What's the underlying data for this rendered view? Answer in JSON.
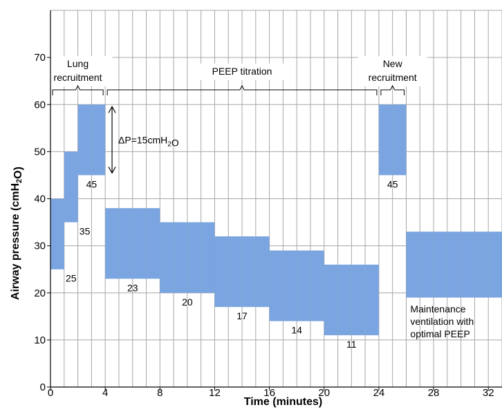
{
  "chart_data": {
    "type": "bar",
    "title": "",
    "xlabel": "Time (minutes)",
    "ylabel": "Airway pressure  (cmH₂O)",
    "xlim": [
      0,
      33
    ],
    "ylim": [
      0,
      80
    ],
    "xticks": [
      0,
      4,
      8,
      12,
      16,
      20,
      24,
      28,
      32
    ],
    "yticks": [
      0,
      10,
      20,
      30,
      40,
      50,
      60,
      70
    ],
    "grid": true,
    "bar_color": "#7aa5e0",
    "bars": [
      {
        "x0": 0,
        "x1": 1,
        "low": 25,
        "high": 40,
        "label": "25"
      },
      {
        "x0": 1,
        "x1": 2,
        "low": 35,
        "high": 50,
        "label": "35"
      },
      {
        "x0": 2,
        "x1": 4,
        "low": 45,
        "high": 60,
        "label": "45"
      },
      {
        "x0": 4,
        "x1": 8,
        "low": 23,
        "high": 38,
        "label": "23"
      },
      {
        "x0": 8,
        "x1": 12,
        "low": 20,
        "high": 35,
        "label": "20"
      },
      {
        "x0": 12,
        "x1": 16,
        "low": 17,
        "high": 32,
        "label": "17"
      },
      {
        "x0": 16,
        "x1": 20,
        "low": 14,
        "high": 29,
        "label": "14"
      },
      {
        "x0": 20,
        "x1": 24,
        "low": 11,
        "high": 26,
        "label": "11"
      },
      {
        "x0": 24,
        "x1": 26,
        "low": 45,
        "high": 60,
        "label": "45"
      },
      {
        "x0": 26,
        "x1": 33,
        "low": 19,
        "high": 33,
        "label": ""
      }
    ],
    "phases": [
      {
        "lines": [
          "Lung",
          "recruitment"
        ],
        "x0": 0,
        "x1": 4
      },
      {
        "lines": [
          "PEEP titration"
        ],
        "x0": 4,
        "x1": 24
      },
      {
        "lines": [
          "New",
          "recruitment"
        ],
        "x0": 24,
        "x1": 26
      }
    ],
    "delta_annotation": {
      "text": "ΔP=15cmH₂O",
      "x": 4.5,
      "low": 45,
      "high": 60
    },
    "maintenance_note": [
      "Maintenance",
      "ventilation with",
      "optimal PEEP"
    ]
  }
}
